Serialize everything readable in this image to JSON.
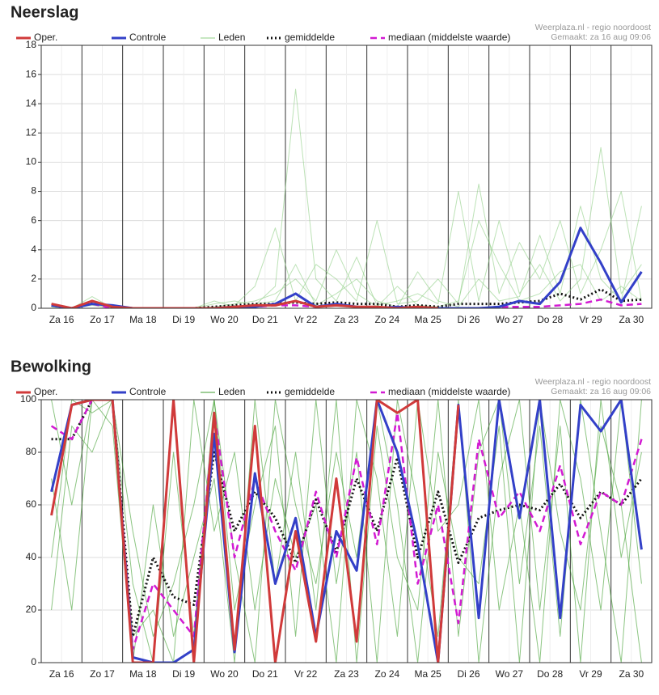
{
  "chart_data": [
    {
      "type": "line",
      "title": "Neerslag",
      "credit": "Weerplaza.nl - regio noordoost",
      "created": "Gemaakt: za 16 aug 09:06",
      "categories": [
        "Za 16",
        null,
        "Zo 17",
        null,
        "Ma 18",
        null,
        "Di 19",
        null,
        "Wo 20",
        null,
        "Do 21",
        null,
        "Vr 22",
        null,
        "Za 23",
        null,
        "Zo 24",
        null,
        "Ma 25",
        null,
        "Di 26",
        null,
        "Wo 27",
        null,
        "Do 28",
        null,
        "Vr 29",
        null,
        "Za 30",
        null
      ],
      "ylim": [
        0,
        18
      ],
      "yticks": [
        0,
        2,
        4,
        6,
        8,
        10,
        12,
        14,
        16,
        18
      ],
      "grid": true,
      "series": [
        {
          "name": "Oper.",
          "color": "#d03a3a",
          "width": 3,
          "dash": "solid",
          "values": [
            0.3,
            0,
            0.5,
            0.1,
            0,
            0,
            0,
            0,
            0,
            0.1,
            0.2,
            0.2,
            0.5,
            0.1,
            0.2,
            0.1,
            0.1,
            0,
            0.1,
            0,
            null,
            null,
            null,
            null,
            null,
            null,
            null,
            null,
            null,
            null
          ]
        },
        {
          "name": "Controle",
          "color": "#3340c8",
          "width": 3,
          "dash": "solid",
          "values": [
            0.2,
            0,
            0.3,
            0.2,
            0,
            0,
            0,
            0,
            0,
            0.1,
            0.1,
            0.3,
            1.0,
            0.1,
            0.3,
            0.1,
            0,
            0.1,
            0,
            0,
            0,
            0,
            0.1,
            0.5,
            0.3,
            1.8,
            5.5,
            3.1,
            0.4,
            2.5
          ]
        },
        {
          "name": "Leden",
          "color": "#8fcf86",
          "width": 1,
          "dash": "solid",
          "members": [
            [
              0.1,
              0,
              0.8,
              0,
              0,
              0,
              0,
              0,
              0.3,
              0.5,
              0.2,
              1.5,
              15,
              2,
              0.5,
              3.5,
              0.2,
              0.5,
              1,
              0.3,
              8,
              0.5,
              6,
              1,
              3,
              0.5,
              2,
              11,
              1,
              3
            ],
            [
              0.2,
              0,
              0.5,
              0,
              0,
              0,
              0,
              0,
              0,
              0.2,
              1.5,
              5.5,
              0.5,
              3,
              2,
              0.5,
              6,
              0.3,
              0.5,
              2,
              0.3,
              8.5,
              1,
              4.5,
              2,
              6,
              1,
              4,
              8,
              0.5
            ],
            [
              0,
              0,
              0.3,
              0,
              0,
              0,
              0,
              0,
              0.5,
              0.1,
              0.3,
              0.5,
              3,
              0.2,
              1,
              2,
              0.5,
              0.1,
              2.5,
              0.5,
              0.1,
              2,
              0.5,
              0.8,
              5,
              1,
              7,
              2,
              0.5,
              7
            ],
            [
              0.1,
              0,
              0.2,
              0,
              0,
              0,
              0,
              0,
              0.1,
              0.3,
              0.5,
              1,
              2,
              0.5,
              4,
              1,
              0.1,
              1.5,
              0.2,
              0.1,
              0.5,
              6,
              3,
              0.5,
              1,
              2.5,
              3,
              0.5,
              1.5,
              0.5
            ]
          ]
        },
        {
          "name": "gemiddelde",
          "color": "#111111",
          "width": 3,
          "dash": "dotted",
          "values": [
            0.2,
            0,
            0.4,
            0.1,
            0,
            0,
            0,
            0,
            0.1,
            0.2,
            0.3,
            0.3,
            0.4,
            0.3,
            0.4,
            0.3,
            0.3,
            0.1,
            0.2,
            0.1,
            0.3,
            0.3,
            0.3,
            0.4,
            0.5,
            1.0,
            0.6,
            1.3,
            0.5,
            0.6
          ]
        },
        {
          "name": "mediaan (middelste waarde)",
          "color": "#d21ad2",
          "width": 2.5,
          "dash": "dashed",
          "values": [
            0.2,
            0,
            0.3,
            0,
            0,
            0,
            0,
            0,
            0,
            0.1,
            0.1,
            0.2,
            0.2,
            0.1,
            0.2,
            0.1,
            0.1,
            0,
            0.1,
            0,
            0,
            0,
            0.1,
            0.1,
            0.1,
            0.2,
            0.3,
            0.6,
            0.2,
            0.3
          ]
        }
      ]
    },
    {
      "type": "line",
      "title": "Bewolking",
      "credit": "Weerplaza.nl - regio noordoost",
      "created": "Gemaakt: za 16 aug 09:06",
      "categories": [
        "Za 16",
        null,
        "Zo 17",
        null,
        "Ma 18",
        null,
        "Di 19",
        null,
        "Wo 20",
        null,
        "Do 21",
        null,
        "Vr 22",
        null,
        "Za 23",
        null,
        "Zo 24",
        null,
        "Ma 25",
        null,
        "Di 26",
        null,
        "Wo 27",
        null,
        "Do 28",
        null,
        "Vr 29",
        null,
        "Za 30",
        null
      ],
      "ylim": [
        0,
        100
      ],
      "yticks": [
        0,
        20,
        40,
        60,
        80,
        100
      ],
      "grid": true,
      "series": [
        {
          "name": "Oper.",
          "color": "#d03a3a",
          "width": 3,
          "dash": "solid",
          "values": [
            56,
            98,
            100,
            100,
            0,
            0,
            100,
            0,
            95,
            5,
            90,
            0,
            50,
            8,
            70,
            8,
            100,
            95,
            100,
            0,
            98,
            null,
            null,
            null,
            null,
            null,
            null,
            null,
            null,
            null
          ]
        },
        {
          "name": "Controle",
          "color": "#3340c8",
          "width": 3,
          "dash": "solid",
          "values": [
            65,
            98,
            100,
            100,
            2,
            0,
            0,
            5,
            87,
            4,
            72,
            30,
            55,
            10,
            50,
            35,
            100,
            80,
            45,
            0,
            98,
            17,
            100,
            55,
            100,
            17,
            98,
            88,
            100,
            43
          ]
        },
        {
          "name": "Leden",
          "color": "#3f9e2f",
          "width": 1,
          "dash": "solid",
          "members": [
            [
              40,
              100,
              95,
              100,
              30,
              0,
              80,
              10,
              100,
              20,
              60,
              90,
              10,
              100,
              30,
              80,
              0,
              100,
              60,
              10,
              100,
              0,
              70,
              100,
              20,
              90,
              0,
              100,
              40,
              80
            ],
            [
              100,
              60,
              100,
              90,
              0,
              60,
              10,
              40,
              70,
              0,
              100,
              30,
              80,
              20,
              100,
              0,
              90,
              40,
              20,
              100,
              10,
              80,
              100,
              30,
              90,
              10,
              100,
              50,
              0,
              100
            ],
            [
              70,
              20,
              100,
              100,
              10,
              20,
              0,
              100,
              50,
              80,
              20,
              70,
              40,
              60,
              0,
              100,
              70,
              10,
              100,
              50,
              60,
              100,
              20,
              60,
              0,
              100,
              70,
              20,
              100,
              30
            ],
            [
              20,
              90,
              80,
              100,
              50,
              10,
              30,
              60,
              100,
              40,
              0,
              100,
              60,
              30,
              80,
              40,
              100,
              60,
              0,
              80,
              40,
              30,
              90,
              0,
              100,
              50,
              20,
              90,
              60,
              0
            ]
          ]
        },
        {
          "name": "gemiddelde",
          "color": "#111111",
          "width": 3,
          "dash": "dotted",
          "values": [
            85,
            85,
            100,
            100,
            10,
            40,
            25,
            22,
            80,
            50,
            65,
            55,
            38,
            62,
            42,
            70,
            50,
            78,
            40,
            65,
            38,
            55,
            58,
            60,
            58,
            68,
            55,
            65,
            60,
            70
          ]
        },
        {
          "name": "mediaan (middelste waarde)",
          "color": "#d21ad2",
          "width": 2.5,
          "dash": "dashed",
          "values": [
            90,
            85,
            100,
            100,
            5,
            30,
            20,
            10,
            95,
            40,
            70,
            50,
            35,
            65,
            40,
            78,
            45,
            95,
            30,
            60,
            15,
            85,
            55,
            65,
            50,
            75,
            45,
            65,
            60,
            85
          ]
        }
      ]
    }
  ]
}
